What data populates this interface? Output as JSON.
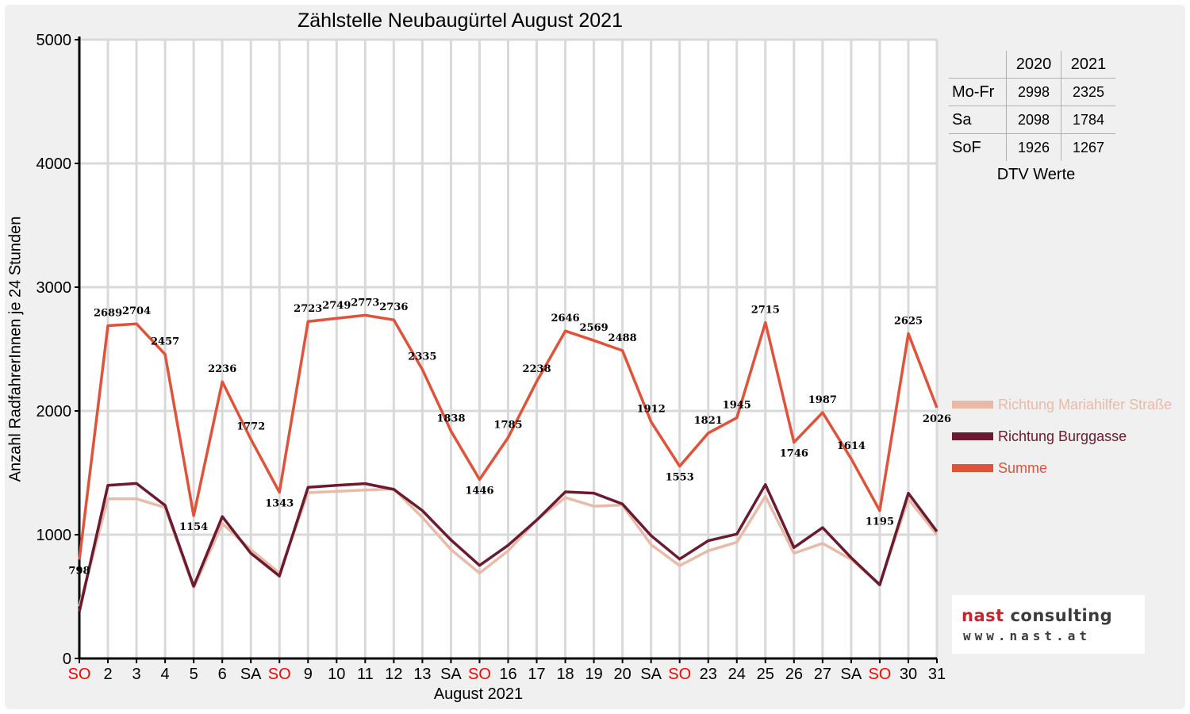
{
  "chart_data": {
    "type": "line",
    "title": "Zählstelle Neubaugürtel August 2021",
    "xlabel": "August 2021",
    "ylabel": "Anzahl RadfahrerInnen je 24 Stunden",
    "ylim": [
      0,
      5000
    ],
    "yticks": [
      "0",
      "1000",
      "2000",
      "3000",
      "4000",
      "5000"
    ],
    "grid": true,
    "legend_position": "right",
    "categories": [
      "SO",
      "2",
      "3",
      "4",
      "5",
      "6",
      "SA",
      "SO",
      "9",
      "10",
      "11",
      "12",
      "13",
      "SA",
      "SO",
      "16",
      "17",
      "18",
      "19",
      "20",
      "SA",
      "SO",
      "23",
      "24",
      "25",
      "26",
      "27",
      "SA",
      "SO",
      "30",
      "31"
    ],
    "category_colors": [
      "#ff0000",
      "#000000",
      "#000000",
      "#000000",
      "#000000",
      "#000000",
      "#000000",
      "#ff0000",
      "#000000",
      "#000000",
      "#000000",
      "#000000",
      "#000000",
      "#000000",
      "#ff0000",
      "#000000",
      "#000000",
      "#000000",
      "#000000",
      "#000000",
      "#000000",
      "#ff0000",
      "#000000",
      "#000000",
      "#000000",
      "#000000",
      "#000000",
      "#000000",
      "#ff0000",
      "#000000",
      "#000000"
    ],
    "series": [
      {
        "name": "Richtung Mariahilfer Straße",
        "color": "#e8bba8",
        "values": [
          420,
          1290,
          1290,
          1220,
          570,
          1090,
          880,
          690,
          1340,
          1350,
          1360,
          1370,
          1140,
          880,
          690,
          870,
          1120,
          1300,
          1230,
          1240,
          920,
          750,
          870,
          940,
          1310,
          850,
          930,
          800,
          600,
          1290,
          1000
        ]
      },
      {
        "name": "Richtung Burggasse",
        "color": "#6b1a30",
        "values": [
          378,
          1399,
          1414,
          1237,
          584,
          1146,
          850,
          666,
          1383,
          1399,
          1413,
          1366,
          1195,
          958,
          752,
          915,
          1118,
          1346,
          1336,
          1248,
          992,
          803,
          951,
          1005,
          1405,
          896,
          1057,
          814,
          595,
          1335,
          1026
        ]
      },
      {
        "name": "Summe",
        "color": "#e0523a",
        "values": [
          798,
          2689,
          2704,
          2457,
          1154,
          2236,
          1772,
          1343,
          2723,
          2749,
          2773,
          2736,
          2335,
          1838,
          1446,
          1785,
          2238,
          2646,
          2569,
          2488,
          1912,
          1553,
          1821,
          1945,
          2715,
          1746,
          1987,
          1614,
          1195,
          2625,
          2026
        ],
        "data_labels": [
          "798",
          "2689",
          "2704",
          "2457",
          "1154",
          "2236",
          "1772",
          "1343",
          "2723",
          "2749",
          "2773",
          "2736",
          "2335",
          "1838",
          "1446",
          "1785",
          "2238",
          "2646",
          "2569",
          "2488",
          "1912",
          "1553",
          "1821",
          "1945",
          "2715",
          "1746",
          "1987",
          "1614",
          "1195",
          "2625",
          "2026"
        ]
      }
    ]
  },
  "dtv_table": {
    "header": [
      "2020",
      "2021"
    ],
    "rows": [
      {
        "label": "Mo-Fr",
        "v2020": "2998",
        "v2021": "2325"
      },
      {
        "label": "Sa",
        "v2020": "2098",
        "v2021": "1784"
      },
      {
        "label": "SoF",
        "v2020": "1926",
        "v2021": "1267"
      }
    ],
    "caption": "DTV Werte"
  },
  "logo": {
    "brand_part1": "nast",
    "brand_part2": " consulting",
    "url": "www.nast.at",
    "brand_colors": [
      "#c0272d",
      "#3c3c3c"
    ]
  }
}
